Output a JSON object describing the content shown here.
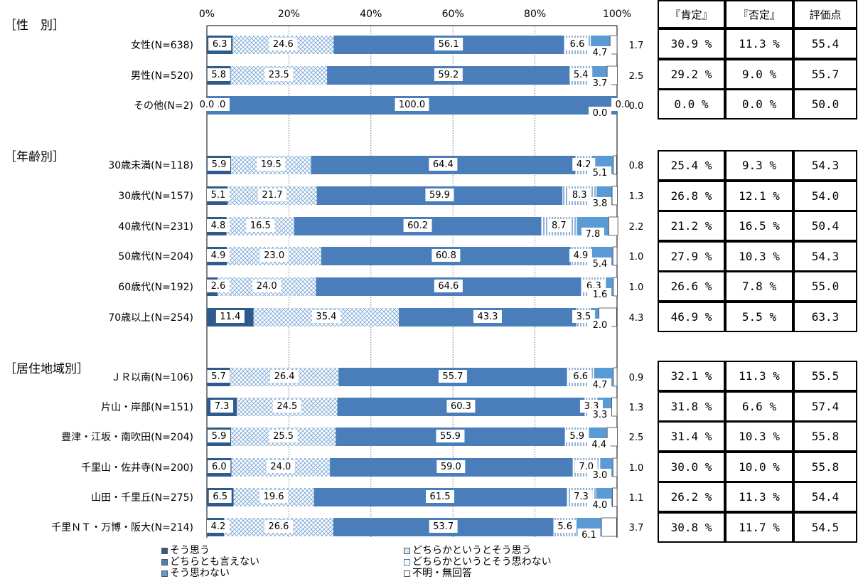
{
  "colors": {
    "sou_omou": "#2f5a8c",
    "dochiraka_sou": "#cfe2f3",
    "dochiratomo": "#4a7ebb",
    "dochiraka_omowanai": "#ffffff",
    "omowanai": "#5b9bd5",
    "fumei": "#ffffff"
  },
  "axis_ticks": [
    "0%",
    "20%",
    "40%",
    "60%",
    "80%",
    "100%"
  ],
  "table_headers": [
    "『肯定』",
    "『否定』",
    "評価点"
  ],
  "sections": [
    {
      "label": "［性　別］"
    },
    {
      "label": "［年齢別］"
    },
    {
      "label": "［居住地域別］"
    }
  ],
  "legend": [
    "そう思う",
    "どちらかというとそう思う",
    "どちらとも言えない",
    "どちらかというとそう思わない",
    "そう思わない",
    "不明・無回答"
  ],
  "chart_data": {
    "type": "bar",
    "orientation": "horizontal-stacked-100",
    "xlim": [
      0,
      100
    ],
    "series_names": [
      "そう思う",
      "どちらかというとそう思う",
      "どちらとも言えない",
      "どちらかというとそう思わない",
      "そう思わない",
      "不明・無回答"
    ],
    "rows": [
      {
        "label": "女性(N=638)",
        "values": [
          6.3,
          24.6,
          56.1,
          6.6,
          4.7,
          1.7
        ],
        "labels": [
          "6.3",
          "24.6",
          "56.1",
          "6.6",
          "4.7",
          "1.7"
        ],
        "kotei": "30.9 %",
        "hitei": "11.3 %",
        "score": "55.4"
      },
      {
        "label": "男性(N=520)",
        "values": [
          5.8,
          23.5,
          59.2,
          5.4,
          3.7,
          2.5
        ],
        "labels": [
          "5.8",
          "23.5",
          "59.2",
          "5.4",
          "3.7",
          "2.5"
        ],
        "kotei": "29.2 %",
        "hitei": "9.0 %",
        "score": "55.7"
      },
      {
        "label": "その他(N=2)",
        "values": [
          0.0,
          0.0,
          100.0,
          0.0,
          0.0,
          0.0
        ],
        "labels": [
          "0.0",
          "0.0",
          "100.0",
          "0.0",
          "0.0",
          "0.0"
        ],
        "kotei": "0.0 %",
        "hitei": "0.0 %",
        "score": "50.0"
      },
      {
        "label": "30歳未満(N=118)",
        "values": [
          5.9,
          19.5,
          64.4,
          4.2,
          5.1,
          0.8
        ],
        "labels": [
          "5.9",
          "19.5",
          "64.4",
          "4.2",
          "5.1",
          "0.8"
        ],
        "kotei": "25.4 %",
        "hitei": "9.3 %",
        "score": "54.3"
      },
      {
        "label": "30歳代(N=157)",
        "values": [
          5.1,
          21.7,
          59.9,
          8.3,
          3.8,
          1.3
        ],
        "labels": [
          "5.1",
          "21.7",
          "59.9",
          "8.3",
          "3.8",
          "1.3"
        ],
        "kotei": "26.8 %",
        "hitei": "12.1 %",
        "score": "54.0"
      },
      {
        "label": "40歳代(N=231)",
        "values": [
          4.8,
          16.5,
          60.2,
          8.7,
          7.8,
          2.2
        ],
        "labels": [
          "4.8",
          "16.5",
          "60.2",
          "8.7",
          "7.8",
          "2.2"
        ],
        "kotei": "21.2 %",
        "hitei": "16.5 %",
        "score": "50.4"
      },
      {
        "label": "50歳代(N=204)",
        "values": [
          4.9,
          23.0,
          60.8,
          4.9,
          5.4,
          1.0
        ],
        "labels": [
          "4.9",
          "23.0",
          "60.8",
          "4.9",
          "5.4",
          "1.0"
        ],
        "kotei": "27.9 %",
        "hitei": "10.3 %",
        "score": "54.3"
      },
      {
        "label": "60歳代(N=192)",
        "values": [
          2.6,
          24.0,
          64.6,
          6.3,
          1.6,
          1.0
        ],
        "labels": [
          "2.6",
          "24.0",
          "64.6",
          "6.3",
          "1.6",
          "1.0"
        ],
        "kotei": "26.6 %",
        "hitei": "7.8 %",
        "score": "55.0"
      },
      {
        "label": "70歳以上(N=254)",
        "values": [
          11.4,
          35.4,
          43.3,
          3.5,
          2.0,
          4.3
        ],
        "labels": [
          "11.4",
          "35.4",
          "43.3",
          "3.5",
          "2.0",
          "4.3"
        ],
        "kotei": "46.9 %",
        "hitei": "5.5 %",
        "score": "63.3"
      },
      {
        "label": "ＪＲ以南(N=106)",
        "values": [
          5.7,
          26.4,
          55.7,
          6.6,
          4.7,
          0.9
        ],
        "labels": [
          "5.7",
          "26.4",
          "55.7",
          "6.6",
          "4.7",
          "0.9"
        ],
        "kotei": "32.1 %",
        "hitei": "11.3 %",
        "score": "55.5"
      },
      {
        "label": "片山・岸部(N=151)",
        "values": [
          7.3,
          24.5,
          60.3,
          3.3,
          3.3,
          1.3
        ],
        "labels": [
          "7.3",
          "24.5",
          "60.3",
          "3.3",
          "3.3",
          "1.3"
        ],
        "kotei": "31.8 %",
        "hitei": "6.6 %",
        "score": "57.4"
      },
      {
        "label": "豊津・江坂・南吹田(N=204)",
        "values": [
          5.9,
          25.5,
          55.9,
          5.9,
          4.4,
          2.5
        ],
        "labels": [
          "5.9",
          "25.5",
          "55.9",
          "5.9",
          "4.4",
          "2.5"
        ],
        "kotei": "31.4 %",
        "hitei": "10.3 %",
        "score": "55.8"
      },
      {
        "label": "千里山・佐井寺(N=200)",
        "values": [
          6.0,
          24.0,
          59.0,
          7.0,
          3.0,
          1.0
        ],
        "labels": [
          "6.0",
          "24.0",
          "59.0",
          "7.0",
          "3.0",
          "1.0"
        ],
        "kotei": "30.0 %",
        "hitei": "10.0 %",
        "score": "55.8"
      },
      {
        "label": "山田・千里丘(N=275)",
        "values": [
          6.5,
          19.6,
          61.5,
          7.3,
          4.0,
          1.1
        ],
        "labels": [
          "6.5",
          "19.6",
          "61.5",
          "7.3",
          "4.0",
          "1.1"
        ],
        "kotei": "26.2 %",
        "hitei": "11.3 %",
        "score": "54.4"
      },
      {
        "label": "千里ＮＴ・万博・阪大(N=214)",
        "values": [
          4.2,
          26.6,
          53.7,
          5.6,
          6.1,
          3.7
        ],
        "labels": [
          "4.2",
          "26.6",
          "53.7",
          "5.6",
          "6.1",
          "3.7"
        ],
        "kotei": "30.8 %",
        "hitei": "11.7 %",
        "score": "54.5"
      }
    ]
  }
}
